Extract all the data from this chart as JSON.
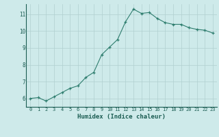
{
  "x": [
    0,
    1,
    2,
    3,
    4,
    5,
    6,
    7,
    8,
    9,
    10,
    11,
    12,
    13,
    14,
    15,
    16,
    17,
    18,
    19,
    20,
    21,
    22,
    23
  ],
  "y": [
    6.0,
    6.05,
    5.85,
    6.1,
    6.35,
    6.6,
    6.75,
    7.25,
    7.55,
    8.6,
    9.05,
    9.5,
    10.55,
    11.3,
    11.05,
    11.1,
    10.75,
    10.5,
    10.4,
    10.4,
    10.2,
    10.1,
    10.05,
    9.88
  ],
  "line_color": "#2e7d6e",
  "marker": "+",
  "marker_color": "#2e7d6e",
  "bg_color": "#ceeaea",
  "grid_color": "#b0d0d0",
  "xlabel": "Humidex (Indice chaleur)",
  "xlabel_color": "#1a5c52",
  "tick_color": "#1a5c52",
  "ylim": [
    5.5,
    11.6
  ],
  "xlim": [
    -0.5,
    23.5
  ],
  "yticks": [
    6,
    7,
    8,
    9,
    10,
    11
  ],
  "xticks": [
    0,
    1,
    2,
    3,
    4,
    5,
    6,
    7,
    8,
    9,
    10,
    11,
    12,
    13,
    14,
    15,
    16,
    17,
    18,
    19,
    20,
    21,
    22,
    23
  ]
}
